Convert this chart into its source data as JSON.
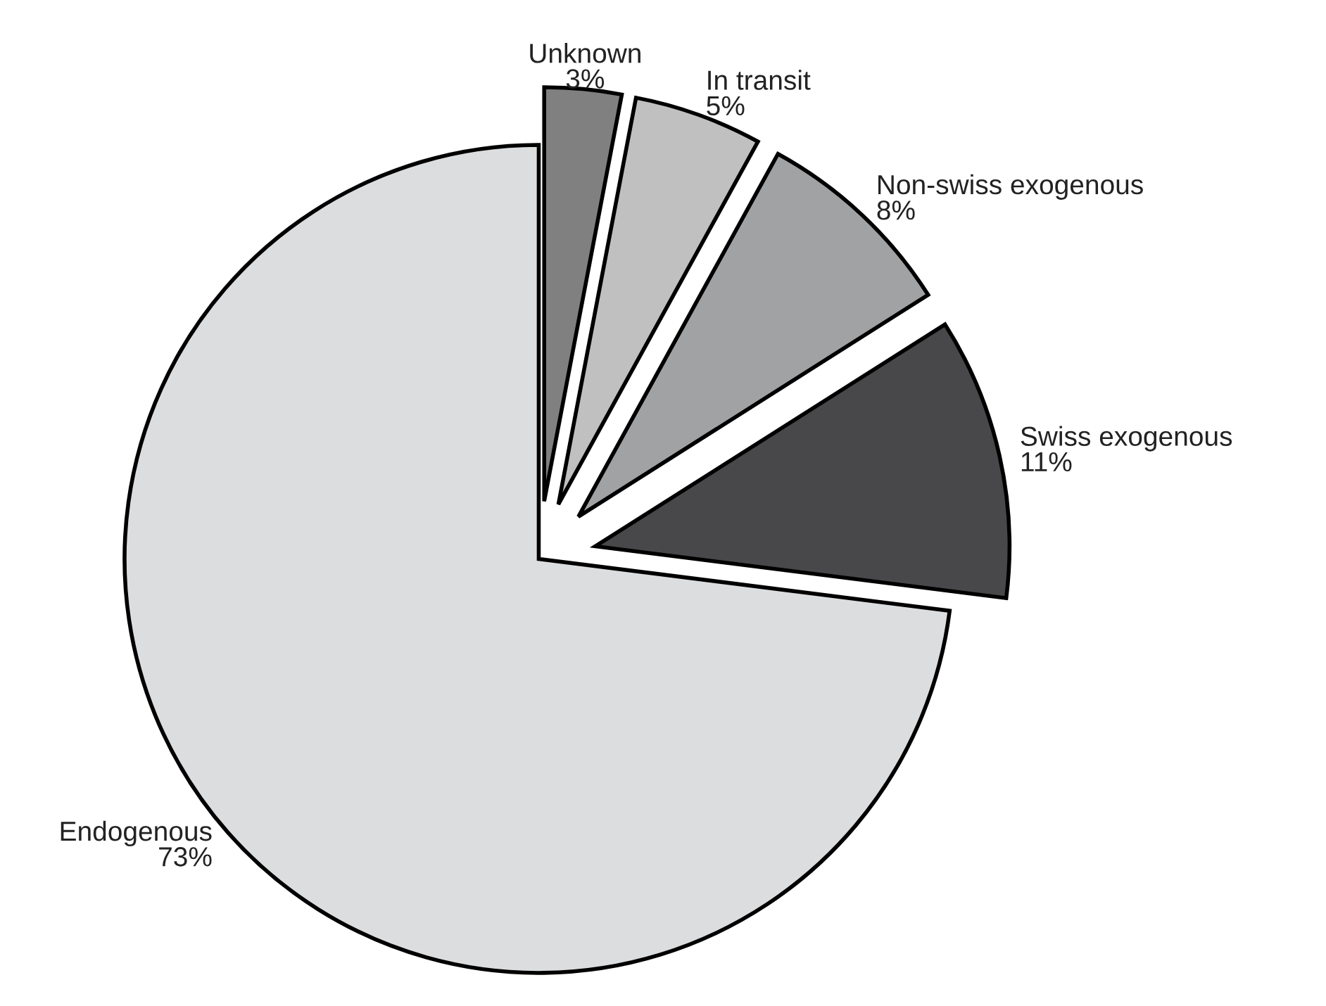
{
  "chart_data": {
    "type": "pie",
    "categories": [
      "Unknown",
      "In transit",
      "Non-swiss exogenous",
      "Swiss exogenous",
      "Endogenous"
    ],
    "values": [
      3,
      5,
      8,
      11,
      73
    ],
    "colors": [
      "#808080",
      "#c0c0c0",
      "#a0a2a4",
      "#48484a",
      "#dcdddf"
    ],
    "value_labels": [
      "3%",
      "5%",
      "8%",
      "11%",
      "73%"
    ],
    "legend": false
  }
}
